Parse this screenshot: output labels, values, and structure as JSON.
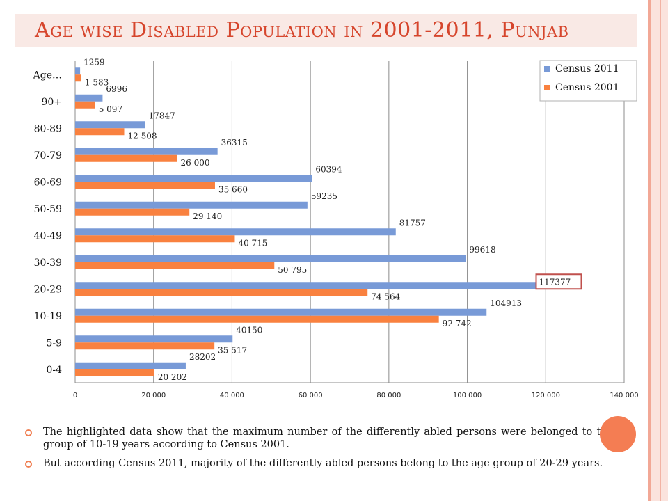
{
  "slide": {
    "title_parts": [
      {
        "text": "A",
        "big": true
      },
      {
        "text": "ge wise ",
        "big": false
      },
      {
        "text": "D",
        "big": true
      },
      {
        "text": "isabled ",
        "big": false
      },
      {
        "text": "P",
        "big": true
      },
      {
        "text": "opulation in ",
        "big": false
      },
      {
        "text": "2001-2011, ",
        "big": true
      },
      {
        "text": "P",
        "big": true
      },
      {
        "text": "unjab",
        "big": false
      }
    ],
    "accent_color": "#d6452c",
    "bullets": [
      "The highlighted data show that the maximum number of the differently abled persons were belonged to the age group of 10-19 years according to Census 2001.",
      "But according Census 2011, majority of the differently abled persons belong to the age group of 20-29 years."
    ]
  },
  "chart_data": {
    "type": "bar",
    "orientation": "horizontal",
    "categories": [
      "0-4",
      "5-9",
      "10-19",
      "20-29",
      "30-39",
      "40-49",
      "50-59",
      "60-69",
      "70-79",
      "80-89",
      "90+",
      "Age…"
    ],
    "series": [
      {
        "name": "Census 2011",
        "color": "#789ad7",
        "values": [
          28202,
          40150,
          104913,
          117377,
          99618,
          81757,
          59235,
          60394,
          36315,
          17847,
          6996,
          1259
        ],
        "labels": [
          "28202",
          "40150",
          "104913",
          "117377",
          "99618",
          "81757",
          "59235",
          "60394",
          "36315",
          "17847",
          "6996",
          "1259"
        ]
      },
      {
        "name": "Census 2001",
        "color": "#f9813f",
        "values": [
          20202,
          35517,
          92742,
          74564,
          50795,
          40715,
          29140,
          35660,
          26000,
          12508,
          5097,
          1583
        ],
        "labels": [
          "20 202",
          "35 517",
          "92 742",
          "74 564",
          "50 795",
          "40 715",
          "29 140",
          "35 660",
          "26 000",
          "12 508",
          "5 097",
          "1 583"
        ]
      }
    ],
    "highlight": {
      "series": "Census 2011",
      "category": "20-29",
      "value": 117377,
      "color": "#c0504d"
    },
    "xlim": [
      0,
      140000
    ],
    "xticks": [
      0,
      20000,
      40000,
      60000,
      80000,
      100000,
      120000,
      140000
    ],
    "xtick_labels": [
      "0",
      "20 000",
      "40 000",
      "60 000",
      "80 000",
      "100 000",
      "120 000",
      "140 000"
    ],
    "grid": true,
    "legend_position": "top-right"
  }
}
